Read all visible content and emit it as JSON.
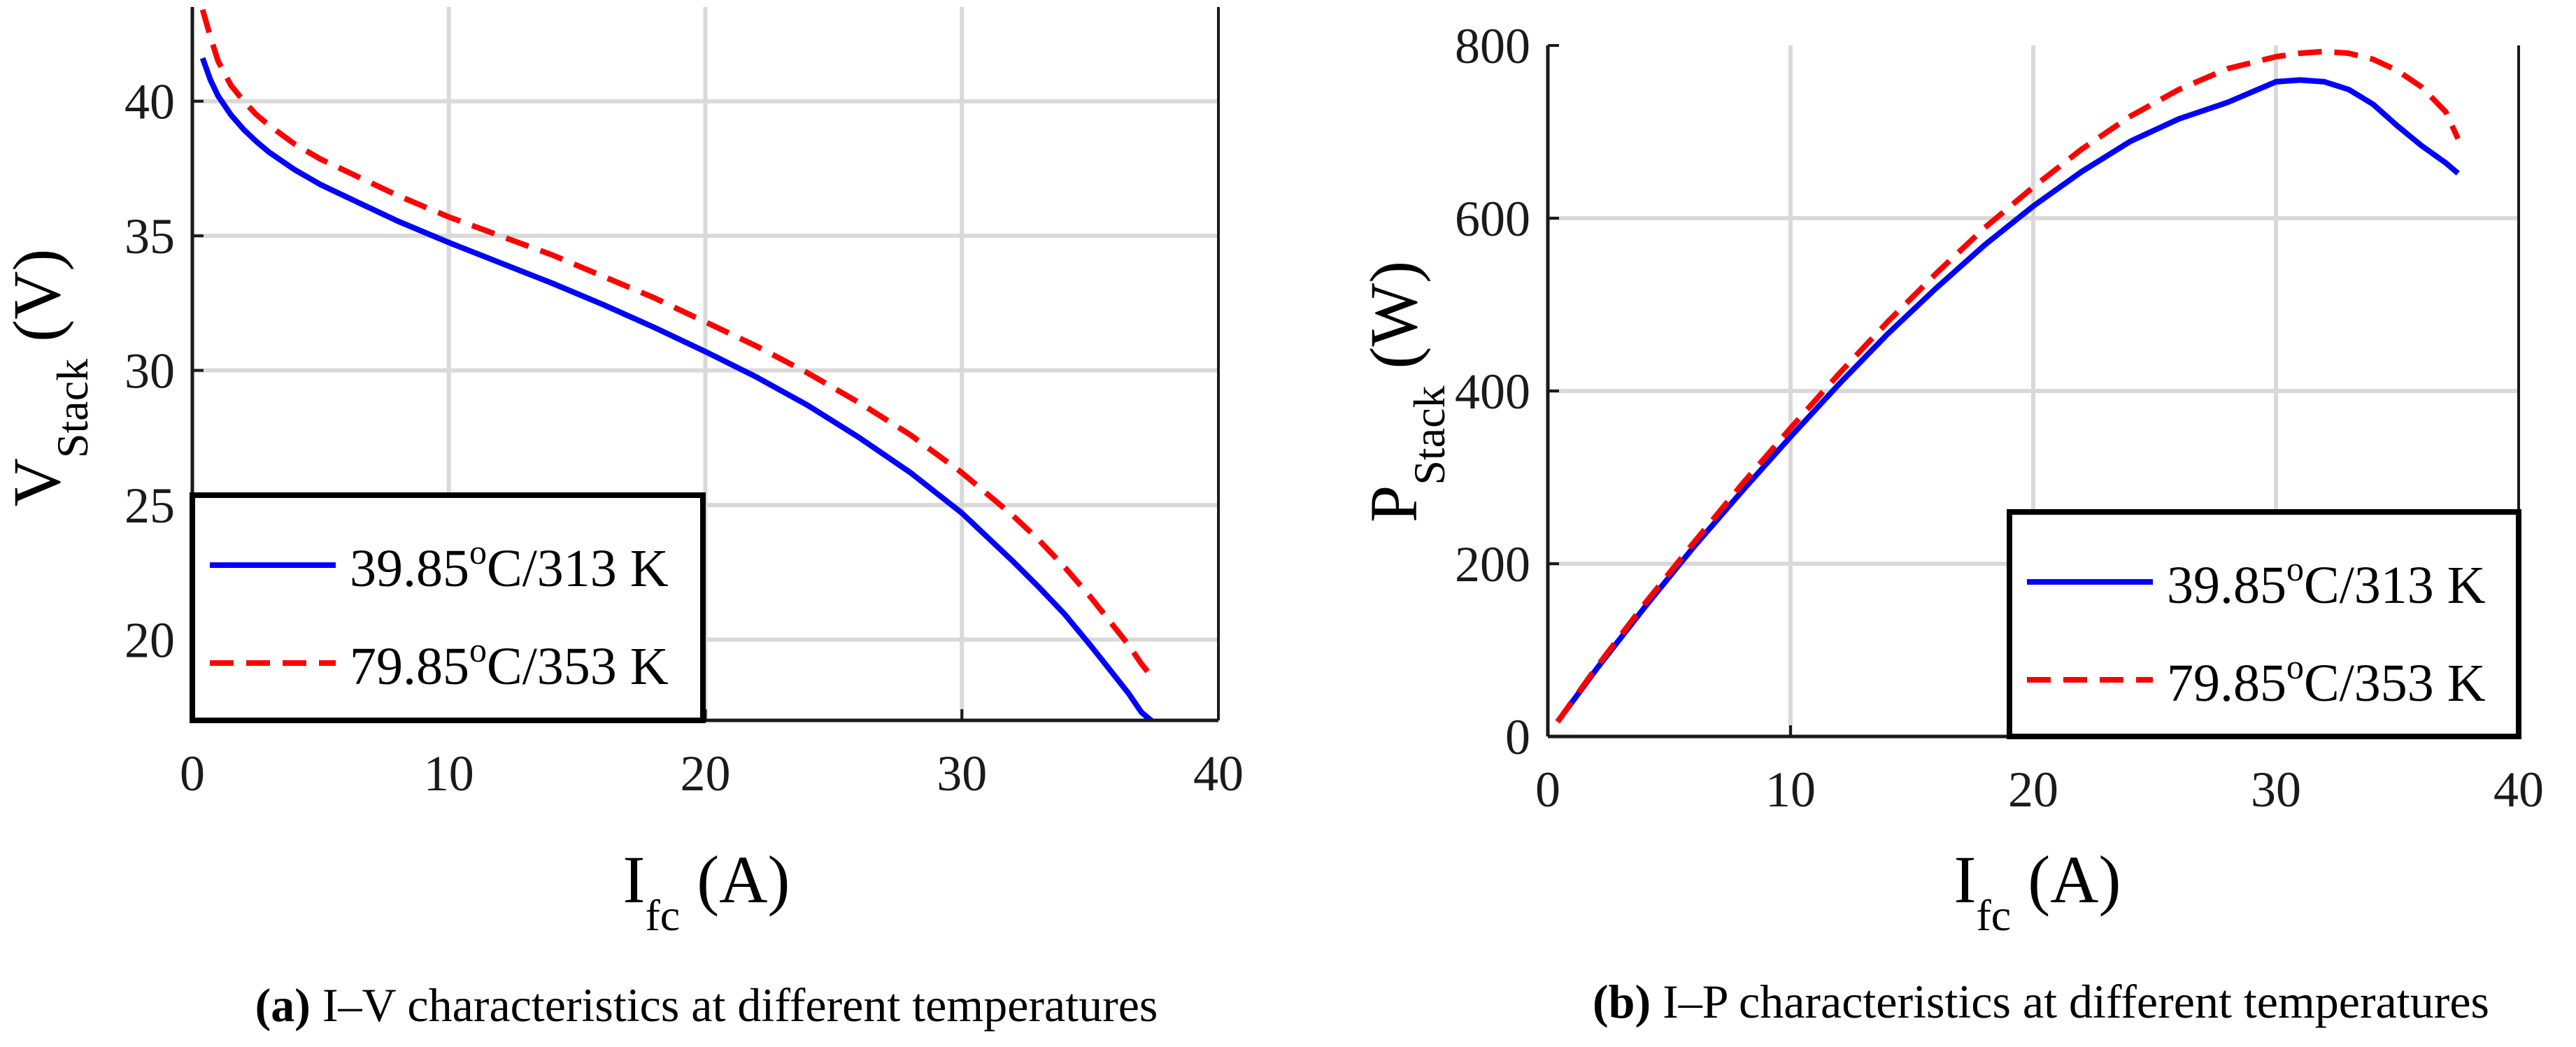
{
  "chart_data": [
    {
      "type": "line",
      "panel_label": "(a)",
      "caption": "I–V characteristics at different temperatures",
      "xlabel": {
        "main": "I",
        "sub": "fc",
        "unit": " (A)"
      },
      "ylabel": {
        "main": "V",
        "sub": "Stack",
        "unit": " (V)"
      },
      "xlim": [
        0,
        40
      ],
      "ylim": [
        17,
        43.5
      ],
      "xticks": [
        0,
        10,
        20,
        30,
        40
      ],
      "yticks": [
        20,
        25,
        30,
        35,
        40
      ],
      "grid": true,
      "legend_position": "bottom-left",
      "x": [
        0.4,
        0.7,
        1,
        1.5,
        2,
        2.5,
        3,
        4,
        5,
        6,
        8,
        10,
        12,
        14,
        16,
        18,
        20,
        22,
        24,
        26,
        28,
        30,
        32,
        33,
        34,
        35,
        35.5,
        36,
        36.5,
        37,
        37.5
      ],
      "series": [
        {
          "name": "39.85",
          "sup": "o",
          "unit": "C/313 K",
          "color": "#0000ff",
          "dash": "solid",
          "values": [
            41.6,
            40.8,
            40.2,
            39.5,
            38.95,
            38.5,
            38.1,
            37.45,
            36.9,
            36.45,
            35.55,
            34.75,
            34.0,
            33.25,
            32.45,
            31.6,
            30.7,
            29.75,
            28.7,
            27.5,
            26.2,
            24.7,
            22.9,
            21.95,
            20.95,
            19.8,
            19.2,
            18.6,
            18.0,
            17.3,
            16.9
          ]
        },
        {
          "name": "79.85",
          "sup": "o",
          "unit": "C/353 K",
          "color": "#ff0000",
          "dash": "dashed",
          "values": [
            43.4,
            42.4,
            41.5,
            40.6,
            40.0,
            39.5,
            39.1,
            38.4,
            37.85,
            37.4,
            36.5,
            35.7,
            35.0,
            34.3,
            33.5,
            32.7,
            31.8,
            30.9,
            29.9,
            28.8,
            27.6,
            26.2,
            24.6,
            23.7,
            22.7,
            21.6,
            21.0,
            20.4,
            19.8,
            19.1,
            18.5
          ]
        }
      ]
    },
    {
      "type": "line",
      "panel_label": "(b)",
      "caption": "I–P characteristics at different temperatures",
      "xlabel": {
        "main": "I",
        "sub": "fc",
        "unit": " (A)"
      },
      "ylabel": {
        "main": "P",
        "sub": "Stack",
        "unit": " (W)"
      },
      "xlim": [
        0,
        40
      ],
      "ylim": [
        0,
        800
      ],
      "xticks": [
        0,
        10,
        20,
        30,
        40
      ],
      "yticks": [
        0,
        200,
        400,
        600,
        800
      ],
      "grid": true,
      "legend_position": "bottom-right",
      "x": [
        0.4,
        2,
        4,
        6,
        8,
        10,
        12,
        14,
        16,
        18,
        20,
        22,
        24,
        26,
        28,
        30,
        31,
        32,
        33,
        34,
        35,
        36,
        37,
        37.5
      ],
      "series": [
        {
          "name": "39.85",
          "sup": "o",
          "unit": "C/313 K",
          "color": "#0000ff",
          "dash": "solid",
          "values": [
            17,
            78,
            150,
            219,
            284,
            347,
            408,
            466,
            519,
            569,
            614,
            654,
            689,
            715,
            734,
            758,
            760,
            758,
            749,
            732,
            707,
            684,
            664,
            652
          ]
        },
        {
          "name": "79.85",
          "sup": "o",
          "unit": "C/353 K",
          "color": "#ff0000",
          "dash": "dashed",
          "values": [
            17,
            80,
            154,
            224,
            292,
            357,
            420,
            480,
            536,
            589,
            636,
            680,
            718,
            749,
            773,
            787,
            791,
            793,
            791,
            784,
            771,
            752,
            723,
            692
          ]
        }
      ]
    }
  ]
}
